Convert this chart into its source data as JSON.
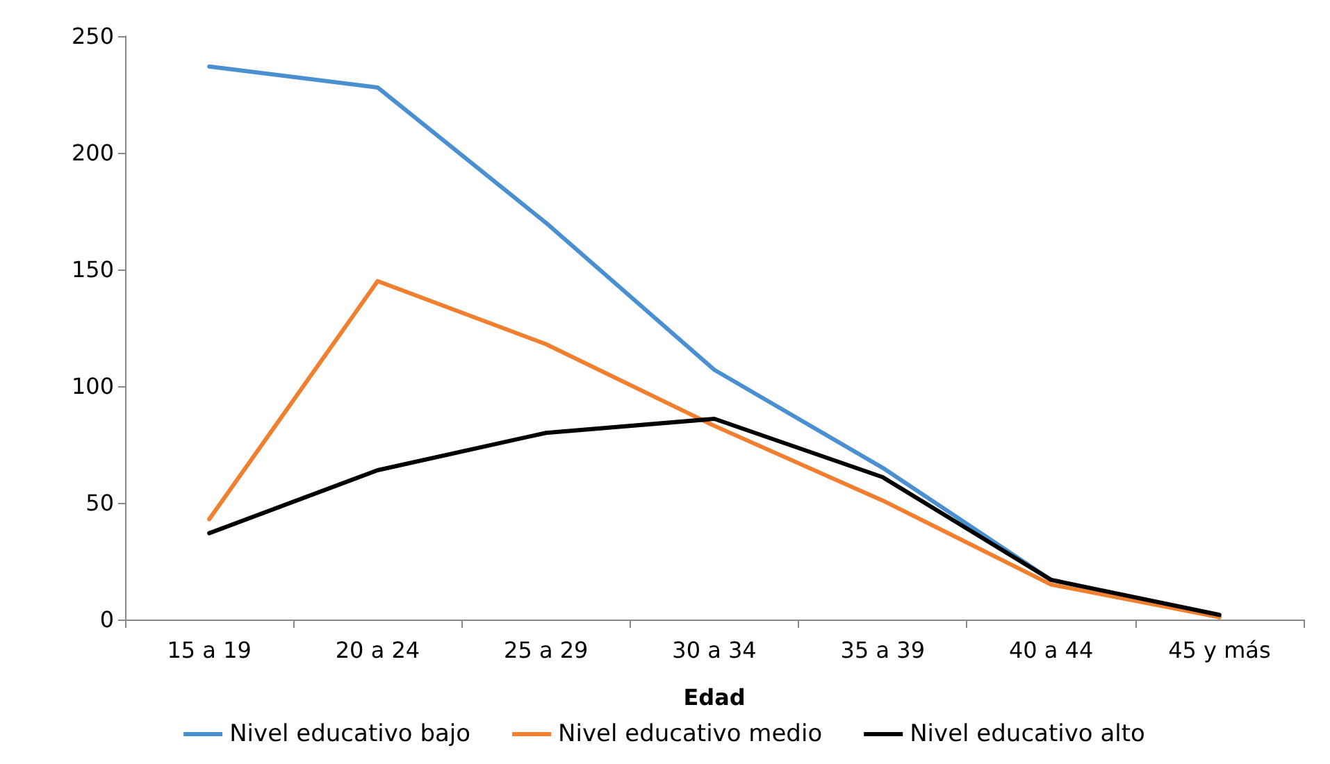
{
  "chart_data": {
    "type": "line",
    "xlabel": "Edad",
    "categories": [
      "15 a 19",
      "20 a 24",
      "25 a 29",
      "30 a 34",
      "35 a 39",
      "40 a 44",
      "45 y más"
    ],
    "series": [
      {
        "name": "Nivel educativo bajo",
        "color": "#4a90d0",
        "values": [
          237,
          228,
          170,
          107,
          65,
          17,
          1
        ]
      },
      {
        "name": "Nivel educativo medio",
        "color": "#f08030",
        "values": [
          43,
          145,
          118,
          83,
          51,
          15,
          1
        ]
      },
      {
        "name": "Nivel educativo alto",
        "color": "#000000",
        "values": [
          37,
          64,
          80,
          86,
          61,
          17,
          2
        ]
      }
    ],
    "ylim": [
      0,
      250
    ],
    "yticks": [
      0,
      50,
      100,
      150,
      200,
      250
    ],
    "grid": false,
    "legend": "bottom",
    "marker": "none",
    "line_style": "solid"
  }
}
